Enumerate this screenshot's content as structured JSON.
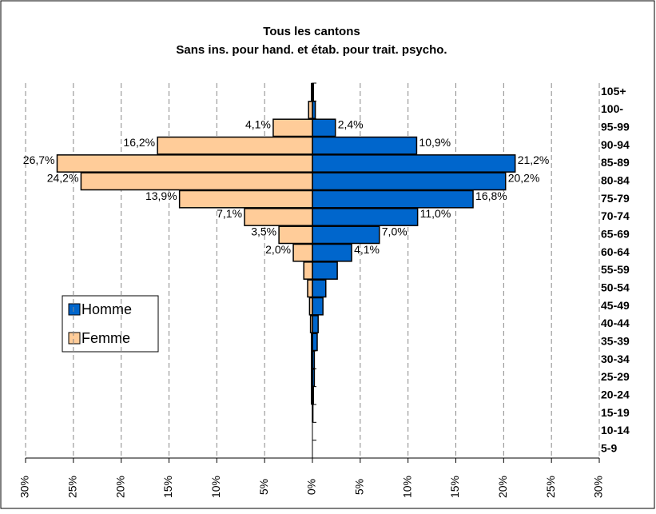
{
  "chart_data": {
    "type": "pyramid",
    "title": "Tous les cantons",
    "subtitle": "Sans ins. pour hand. et étab. pour trait. psycho.",
    "categories": [
      "105+",
      "100-",
      "95-99",
      "90-94",
      "85-89",
      "80-84",
      "75-79",
      "70-74",
      "65-69",
      "60-64",
      "55-59",
      "50-54",
      "45-49",
      "40-44",
      "35-39",
      "30-34",
      "25-29",
      "20-24",
      "15-19",
      "10-14",
      "5-9"
    ],
    "series": [
      {
        "name": "Homme",
        "color": "#0066cc",
        "side": "right",
        "values": [
          0.1,
          0.3,
          2.4,
          10.9,
          21.2,
          20.2,
          16.8,
          11.0,
          7.0,
          4.1,
          2.6,
          1.4,
          1.1,
          0.6,
          0.5,
          0.2,
          0.2,
          0.1,
          0.05,
          0,
          0
        ],
        "value_labels": [
          null,
          null,
          "2,4%",
          "10,9%",
          "21,2%",
          "20,2%",
          "16,8%",
          "11,0%",
          "7,0%",
          "4,1%",
          null,
          null,
          null,
          null,
          null,
          null,
          null,
          null,
          null,
          null,
          null
        ]
      },
      {
        "name": "Femme",
        "color": "#ffcc99",
        "side": "left",
        "values": [
          0.1,
          0.4,
          4.1,
          16.2,
          26.7,
          24.2,
          13.9,
          7.1,
          3.5,
          2.0,
          0.9,
          0.5,
          0.3,
          0.2,
          0.1,
          0.1,
          0.1,
          0.1,
          0,
          0,
          0
        ],
        "value_labels": [
          null,
          null,
          "4,1%",
          "16,2%",
          "26,7%",
          "24,2%",
          "13,9%",
          "7,1%",
          "3,5%",
          "2,0%",
          null,
          null,
          null,
          null,
          null,
          null,
          null,
          null,
          null,
          null,
          null
        ]
      }
    ],
    "xlim": [
      -30,
      30
    ],
    "xticks": [
      {
        "value": -30,
        "label": "30%"
      },
      {
        "value": -25,
        "label": "25%"
      },
      {
        "value": -20,
        "label": "20%"
      },
      {
        "value": -15,
        "label": "15%"
      },
      {
        "value": -10,
        "label": "10%"
      },
      {
        "value": -5,
        "label": "5%"
      },
      {
        "value": 0,
        "label": "0%"
      },
      {
        "value": 5,
        "label": "5%"
      },
      {
        "value": 10,
        "label": "10%"
      },
      {
        "value": 15,
        "label": "15%"
      },
      {
        "value": 20,
        "label": "20%"
      },
      {
        "value": 25,
        "label": "25%"
      },
      {
        "value": 30,
        "label": "30%"
      }
    ],
    "grid": true
  }
}
